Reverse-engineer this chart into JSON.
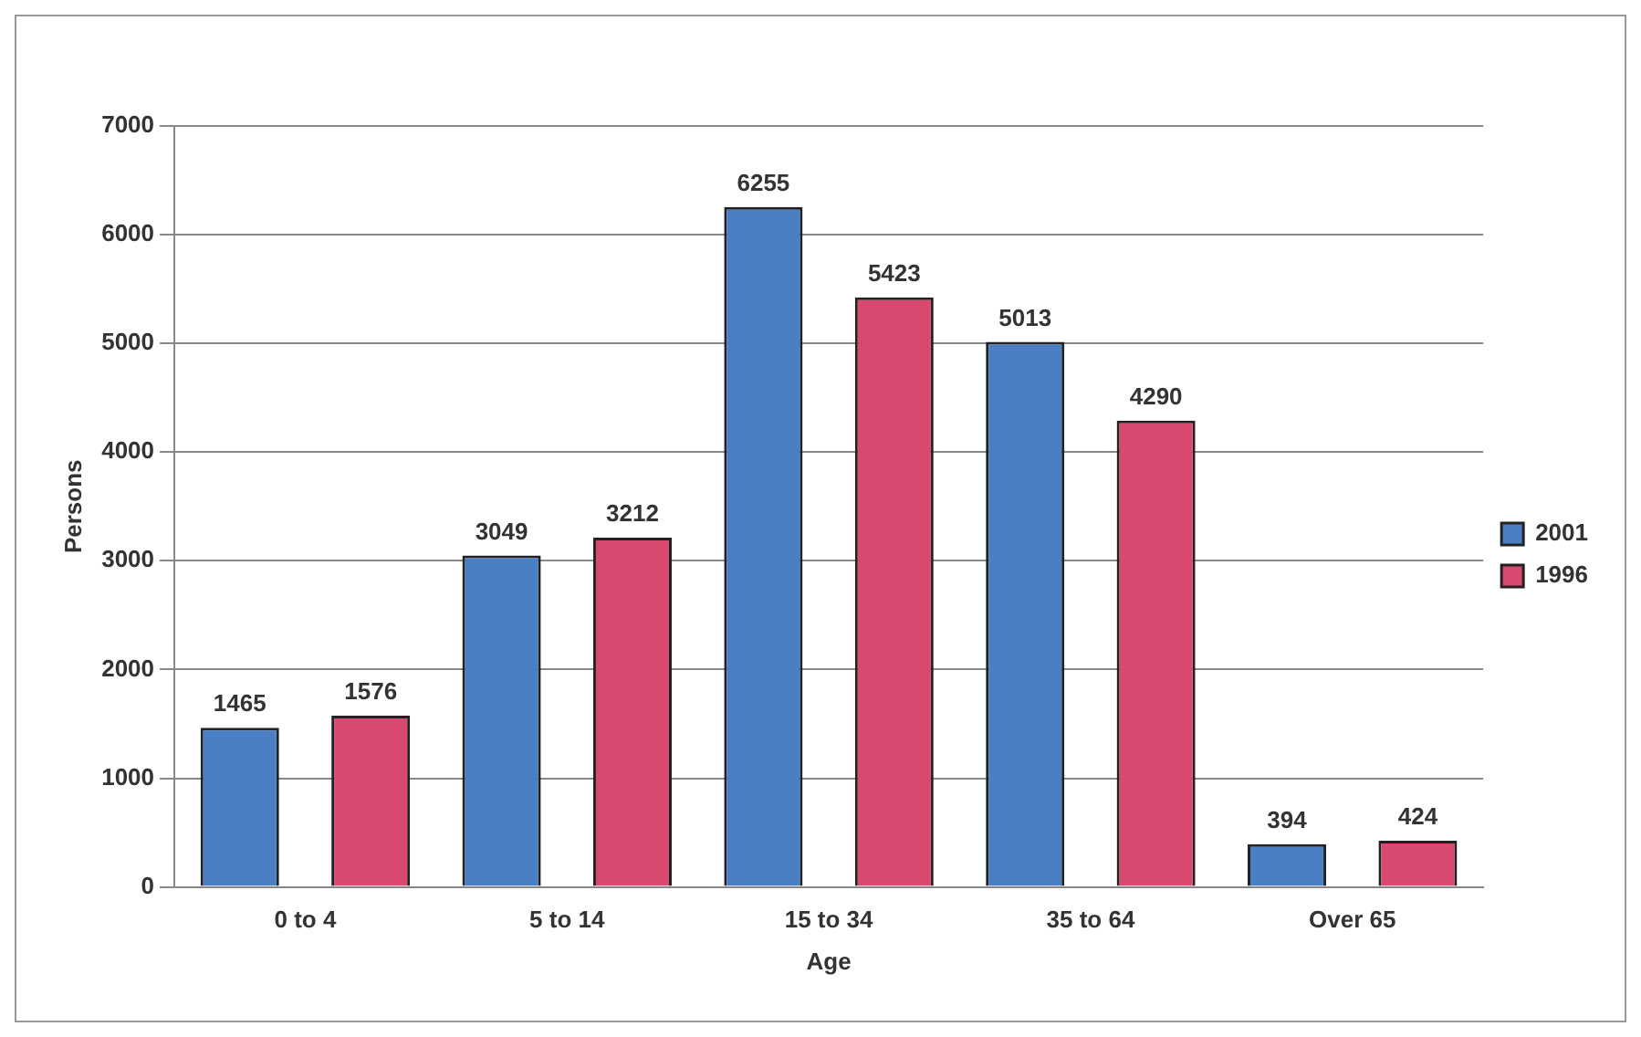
{
  "chart_data": {
    "type": "bar",
    "xlabel": "Age",
    "ylabel": "Persons",
    "categories": [
      "0 to 4",
      "5 to 14",
      "15 to 34",
      "35 to 64",
      "Over 65"
    ],
    "series": [
      {
        "name": "2001",
        "color": "#4a7fc4",
        "values": [
          1465,
          3049,
          6255,
          5013,
          394
        ]
      },
      {
        "name": "1996",
        "color": "#d9486f",
        "values": [
          1576,
          3212,
          5423,
          4290,
          424
        ]
      }
    ],
    "ylim": [
      0,
      7000
    ],
    "yticks": [
      0,
      1000,
      2000,
      3000,
      4000,
      5000,
      6000,
      7000
    ],
    "grid": "y",
    "legend": "right",
    "data_labels": true
  }
}
